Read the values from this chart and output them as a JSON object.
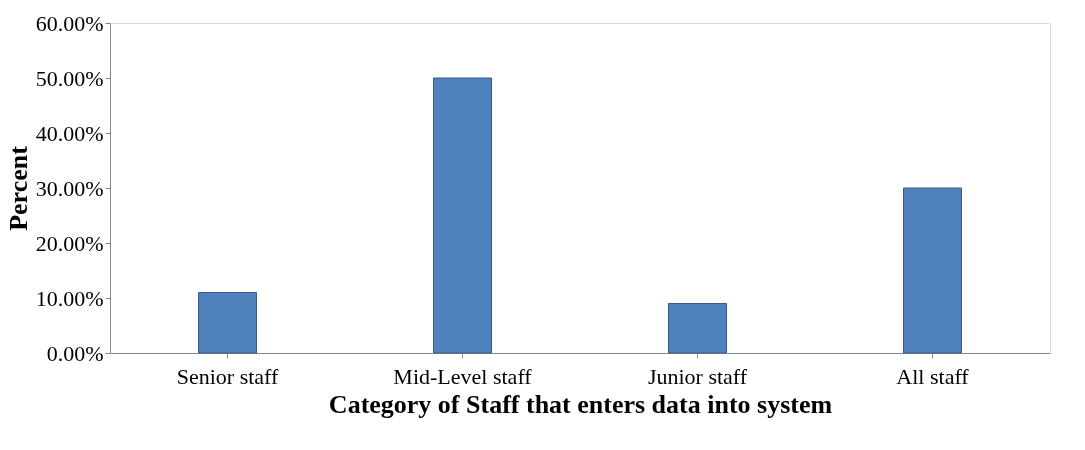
{
  "chart_data": {
    "type": "bar",
    "xlabel": "Category of Staff that enters data into system",
    "ylabel": "Percent",
    "categories": [
      "Senior staff",
      "Mid-Level staff",
      "Junior staff",
      "All staff"
    ],
    "values": [
      11,
      50,
      9,
      30
    ],
    "color": "#4f81bd",
    "ylim": [
      0,
      60
    ],
    "yticks": [
      {
        "value": 0,
        "label": "0.00%"
      },
      {
        "value": 10,
        "label": "10.00%"
      },
      {
        "value": 20,
        "label": "20.00%"
      },
      {
        "value": 30,
        "label": "30.00%"
      },
      {
        "value": 40,
        "label": "40.00%"
      },
      {
        "value": 50,
        "label": "50.00%"
      },
      {
        "value": 60,
        "label": "60.00%"
      }
    ],
    "grid": false
  }
}
